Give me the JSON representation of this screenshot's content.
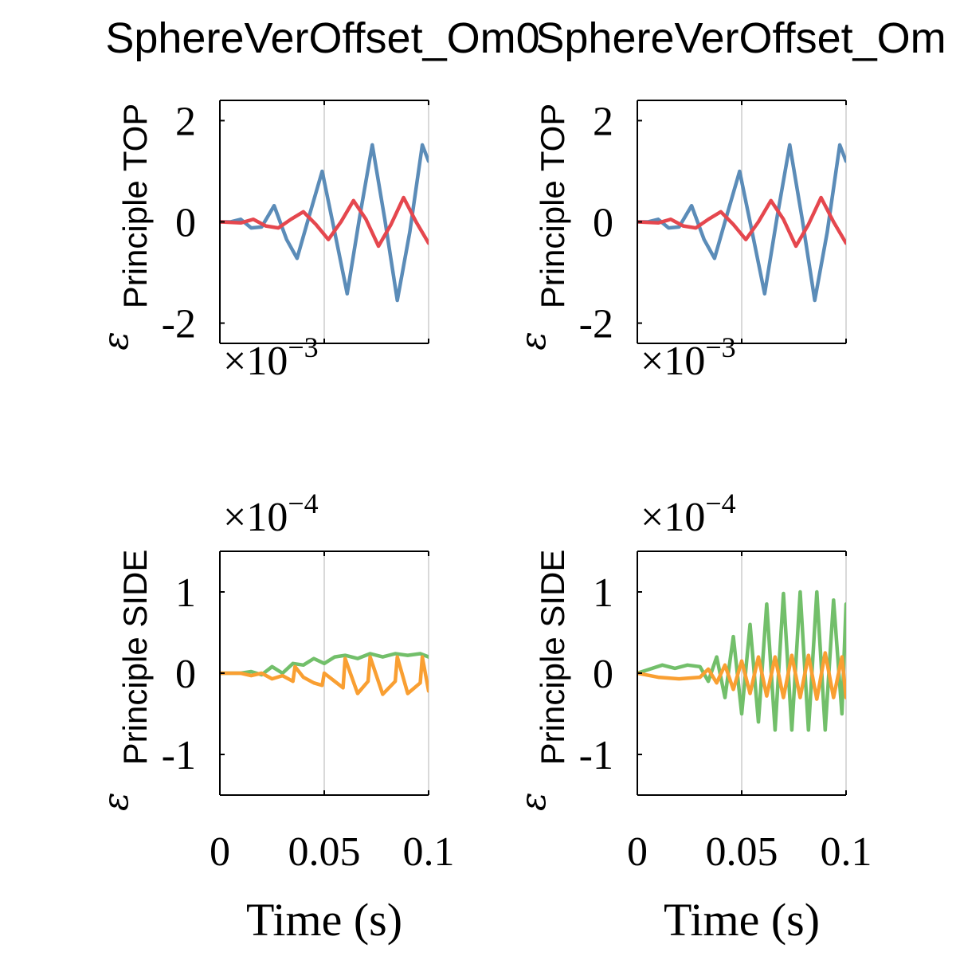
{
  "colors": {
    "blue": "#5b8cb8",
    "red": "#e5474e",
    "green": "#72bf6a",
    "orange": "#f99f32",
    "grid": "#d9d9d9"
  },
  "chart_data": [
    {
      "type": "line",
      "title": "SphereVerOffset_Om0",
      "ylabel_symbol": "ε",
      "ylabel_sub": "Principle TOP",
      "multiplier_base": "×10",
      "multiplier_exp": "−3",
      "xlim": [
        0,
        0.1
      ],
      "ylim": [
        -2.4,
        2.4
      ],
      "xticks": [
        0,
        0.05,
        0.1
      ],
      "yticks": [
        -2,
        0,
        2
      ],
      "ytick_labels": [
        "-2",
        "0",
        "2"
      ],
      "grid_x": true,
      "series": [
        {
          "color": "blue",
          "x": [
            0,
            0.005,
            0.01,
            0.015,
            0.02,
            0.026,
            0.032,
            0.037,
            0.043,
            0.049,
            0.055,
            0.061,
            0.067,
            0.073,
            0.079,
            0.085,
            0.091,
            0.097,
            0.1
          ],
          "y": [
            0,
            0,
            0.05,
            -0.12,
            -0.1,
            0.32,
            -0.35,
            -0.72,
            0.15,
            1.0,
            -0.2,
            -1.42,
            0.1,
            1.52,
            0.05,
            -1.55,
            -0.2,
            1.52,
            1.2
          ]
        },
        {
          "color": "red",
          "x": [
            0,
            0.01,
            0.016,
            0.022,
            0.028,
            0.034,
            0.04,
            0.046,
            0.052,
            0.058,
            0.064,
            0.07,
            0.076,
            0.082,
            0.088,
            0.094,
            0.1
          ],
          "y": [
            0,
            -0.02,
            0.05,
            -0.08,
            -0.12,
            0.05,
            0.2,
            -0.05,
            -0.35,
            0.0,
            0.42,
            0.05,
            -0.48,
            -0.05,
            0.48,
            0.0,
            -0.42
          ]
        }
      ]
    },
    {
      "type": "line",
      "title": "SphereVerOffset_Om",
      "ylabel_symbol": "ε",
      "ylabel_sub": "Principle TOP",
      "multiplier_base": "×10",
      "multiplier_exp": "−3",
      "xlim": [
        0,
        0.1
      ],
      "ylim": [
        -2.4,
        2.4
      ],
      "xticks": [
        0,
        0.05,
        0.1
      ],
      "yticks": [
        -2,
        0,
        2
      ],
      "ytick_labels": [
        "-2",
        "0",
        "2"
      ],
      "grid_x": true,
      "series": [
        {
          "color": "blue",
          "x": [
            0,
            0.005,
            0.01,
            0.015,
            0.02,
            0.026,
            0.032,
            0.037,
            0.043,
            0.049,
            0.055,
            0.061,
            0.067,
            0.073,
            0.079,
            0.085,
            0.091,
            0.097,
            0.1
          ],
          "y": [
            0,
            0,
            0.05,
            -0.12,
            -0.1,
            0.32,
            -0.35,
            -0.72,
            0.15,
            1.0,
            -0.2,
            -1.42,
            0.1,
            1.52,
            0.05,
            -1.55,
            -0.2,
            1.52,
            1.2
          ]
        },
        {
          "color": "red",
          "x": [
            0,
            0.01,
            0.016,
            0.022,
            0.028,
            0.034,
            0.04,
            0.046,
            0.052,
            0.058,
            0.064,
            0.07,
            0.076,
            0.082,
            0.088,
            0.094,
            0.1
          ],
          "y": [
            0,
            -0.02,
            0.05,
            -0.08,
            -0.12,
            0.05,
            0.2,
            -0.05,
            -0.35,
            0.0,
            0.42,
            0.05,
            -0.48,
            -0.05,
            0.48,
            0.0,
            -0.42
          ]
        }
      ]
    },
    {
      "type": "line",
      "title": "",
      "ylabel_symbol": "ε",
      "ylabel_sub": "Principle SIDE",
      "multiplier_base": "×10",
      "multiplier_exp": "−4",
      "xlim": [
        0,
        0.1
      ],
      "ylim": [
        -1.5,
        1.5
      ],
      "xticks": [
        0,
        0.05,
        0.1
      ],
      "xtick_labels": [
        "0",
        "0.05",
        "0.1"
      ],
      "yticks": [
        -1,
        0,
        1
      ],
      "ytick_labels": [
        "-1",
        "0",
        "1"
      ],
      "xlabel": "Time (s)",
      "grid_x": true,
      "series": [
        {
          "color": "green",
          "x": [
            0,
            0.01,
            0.015,
            0.02,
            0.025,
            0.03,
            0.035,
            0.04,
            0.045,
            0.05,
            0.055,
            0.06,
            0.066,
            0.072,
            0.078,
            0.084,
            0.09,
            0.096,
            0.1
          ],
          "y": [
            0,
            0,
            0.02,
            -0.02,
            0.08,
            0.0,
            0.12,
            0.1,
            0.18,
            0.12,
            0.2,
            0.22,
            0.18,
            0.24,
            0.2,
            0.24,
            0.22,
            0.24,
            0.2
          ]
        },
        {
          "color": "orange",
          "x": [
            0,
            0.01,
            0.015,
            0.02,
            0.025,
            0.03,
            0.035,
            0.036,
            0.04,
            0.045,
            0.049,
            0.05,
            0.055,
            0.059,
            0.06,
            0.066,
            0.071,
            0.072,
            0.078,
            0.084,
            0.085,
            0.09,
            0.096,
            0.097,
            0.1
          ],
          "y": [
            0,
            0,
            -0.03,
            0.0,
            -0.07,
            -0.03,
            -0.1,
            0.08,
            -0.05,
            -0.12,
            -0.15,
            0.0,
            -0.1,
            -0.18,
            0.18,
            -0.25,
            -0.1,
            0.2,
            -0.26,
            -0.1,
            0.2,
            -0.25,
            -0.12,
            0.2,
            -0.22
          ]
        }
      ]
    },
    {
      "type": "line",
      "title": "",
      "ylabel_symbol": "ε",
      "ylabel_sub": "Principle SIDE",
      "multiplier_base": "×10",
      "multiplier_exp": "−4",
      "xlim": [
        0,
        0.1
      ],
      "ylim": [
        -1.5,
        1.5
      ],
      "xticks": [
        0,
        0.05,
        0.1
      ],
      "xtick_labels": [
        "0",
        "0.05",
        "0.1"
      ],
      "yticks": [
        -1,
        0,
        1
      ],
      "ytick_labels": [
        "-1",
        "0",
        "1"
      ],
      "xlabel": "Time (s)",
      "grid_x": true,
      "series": [
        {
          "color": "green",
          "x": [
            0,
            0.006,
            0.012,
            0.018,
            0.024,
            0.03,
            0.034,
            0.038,
            0.042,
            0.046,
            0.05,
            0.054,
            0.058,
            0.062,
            0.066,
            0.07,
            0.074,
            0.078,
            0.082,
            0.086,
            0.09,
            0.094,
            0.098,
            0.1
          ],
          "y": [
            0,
            0.05,
            0.1,
            0.06,
            0.1,
            0.08,
            -0.1,
            0.2,
            -0.3,
            0.45,
            -0.5,
            0.6,
            -0.6,
            0.85,
            -0.7,
            0.98,
            -0.7,
            1.0,
            -0.7,
            1.0,
            -0.7,
            0.9,
            -0.5,
            0.85
          ]
        },
        {
          "color": "orange",
          "x": [
            0,
            0.01,
            0.02,
            0.03,
            0.034,
            0.038,
            0.042,
            0.046,
            0.05,
            0.054,
            0.058,
            0.062,
            0.066,
            0.07,
            0.074,
            0.078,
            0.082,
            0.086,
            0.09,
            0.094,
            0.098,
            0.1
          ],
          "y": [
            0,
            -0.05,
            -0.07,
            -0.05,
            0.05,
            -0.12,
            0.1,
            -0.2,
            0.15,
            -0.25,
            0.2,
            -0.28,
            0.2,
            -0.3,
            0.22,
            -0.3,
            0.22,
            -0.32,
            0.25,
            -0.3,
            0.2,
            -0.3
          ]
        }
      ]
    }
  ]
}
